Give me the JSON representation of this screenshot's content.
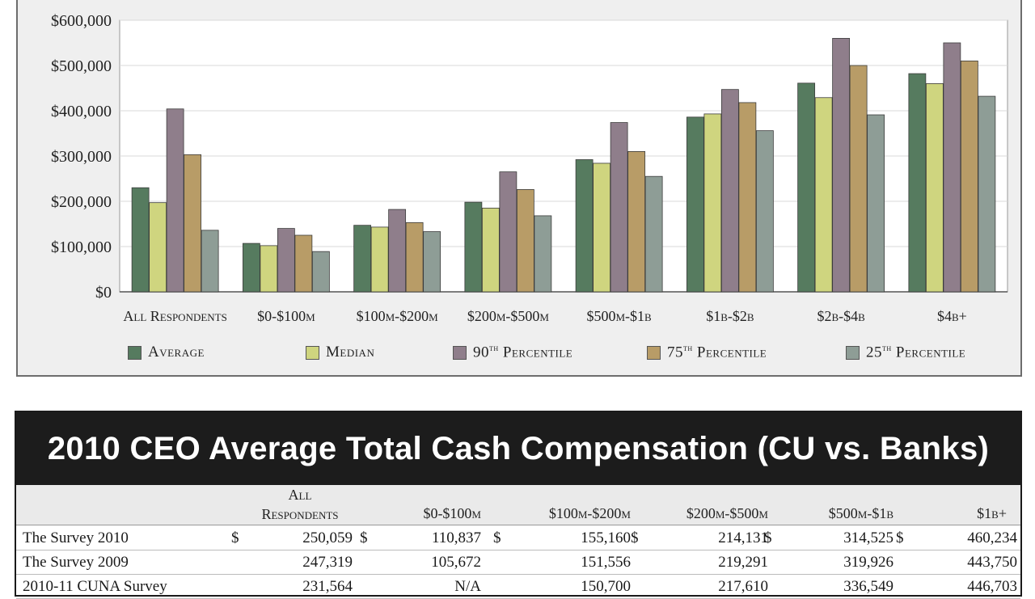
{
  "chart_data": {
    "type": "bar",
    "categories": [
      "All Respondents",
      "$0-$100m",
      "$100m-$200m",
      "$200m-$500m",
      "$500m-$1b",
      "$1b-$2b",
      "$2b-$4b",
      "$4b+"
    ],
    "series": [
      {
        "name": "Average",
        "color": "#567b5f",
        "values": [
          230000,
          107000,
          147000,
          198000,
          292000,
          386000,
          461000,
          482000
        ]
      },
      {
        "name": "Median",
        "color": "#cfd57f",
        "values": [
          197000,
          102000,
          143000,
          185000,
          284000,
          393000,
          429000,
          460000
        ]
      },
      {
        "name": "90th Percentile",
        "color": "#8f7e8b",
        "values": [
          404000,
          140000,
          182000,
          265000,
          374000,
          447000,
          560000,
          550000
        ]
      },
      {
        "name": "75th Percentile",
        "color": "#b89c67",
        "values": [
          303000,
          125000,
          153000,
          226000,
          310000,
          418000,
          500000,
          510000
        ]
      },
      {
        "name": "25th Percentile",
        "color": "#8e9d96",
        "values": [
          136000,
          89000,
          133000,
          168000,
          255000,
          356000,
          391000,
          432000
        ]
      }
    ],
    "yticks": [
      "$0",
      "$100,000",
      "$200,000",
      "$300,000",
      "$400,000",
      "$500,000",
      "$600,000"
    ],
    "ylim": [
      0,
      600000
    ],
    "grid": true,
    "legend": "bottom"
  },
  "legend_labels": {
    "average": "Average",
    "median": "Median",
    "p90_base": "90",
    "p90_sup": "th",
    "p90_rest": " Percentile",
    "p75_base": "75",
    "p75_sup": "th",
    "p75_rest": " Percentile",
    "p25_base": "25",
    "p25_sup": "th",
    "p25_rest": " Percentile"
  },
  "table": {
    "title": "2010 CEO Average Total Cash Compensation (CU vs. Banks)",
    "headers": [
      "All Respondents",
      "$0-$100m",
      "$100m-$200m",
      "$200m-$500m",
      "$500m-$1b",
      "$1b+"
    ],
    "rows": [
      {
        "label": "The Survey 2010",
        "cells": [
          "$  250,059",
          "$  110,837",
          "$  155,160",
          "$  214,131",
          "$  314,525",
          "$  460,234"
        ]
      },
      {
        "label": "The Survey 2009",
        "cells": [
          "247,319",
          "105,672",
          "151,556",
          "219,291",
          "319,926",
          "443,750"
        ]
      },
      {
        "label": "2010-11 CUNA Survey",
        "cells": [
          "231,564",
          "N/A",
          "150,700",
          "217,610",
          "336,549",
          "446,703"
        ]
      }
    ]
  }
}
